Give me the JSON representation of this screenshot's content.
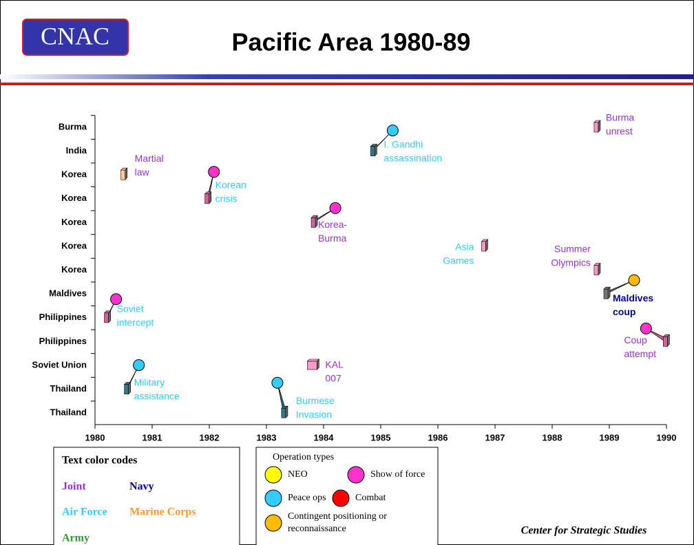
{
  "logo": "CNAC",
  "footer": "Center for Strategic Studies",
  "chart_data": {
    "type": "timeline",
    "title": "Pacific Area 1980-89",
    "categories": [
      "Burma",
      "India",
      "Korea",
      "Korea",
      "Korea",
      "Korea",
      "Korea",
      "Maldives",
      "Philippines",
      "Philippines",
      "Soviet Union",
      "Thailand",
      "Thailand"
    ],
    "xlim": [
      1980,
      1990
    ],
    "xticks": [
      1980,
      1981,
      1982,
      1983,
      1984,
      1985,
      1986,
      1987,
      1988,
      1989,
      1990
    ],
    "events": [
      {
        "label": [
          "Burma",
          "unrest"
        ],
        "x": 1988.77,
        "y": 0,
        "service": 0,
        "box_color": "#ff99cc"
      },
      {
        "label": [
          "I. Gandhi",
          "assassination"
        ],
        "x": 1984.86,
        "y": 1,
        "service": 2,
        "operation": 2,
        "box_color": "#337788"
      },
      {
        "label": [
          "Martial",
          "law"
        ],
        "x": 1980.49,
        "y": 2,
        "service": 0,
        "box_color": "#ffcc99"
      },
      {
        "label": [
          "Korean",
          "crisis"
        ],
        "x": 1981.96,
        "y": 3,
        "service": 2,
        "operation": 1,
        "box_color": "#cc6699"
      },
      {
        "label": [
          "Korea-",
          "Burma"
        ],
        "x": 1983.82,
        "y": 4,
        "service": 0,
        "operation": 1,
        "box_color": "#cc6699"
      },
      {
        "label": [
          "Asia",
          "Games"
        ],
        "x": 1986.8,
        "y": 5,
        "service": 2,
        "box_color": "#ff99cc"
      },
      {
        "label": [
          "Summer",
          "Olympics"
        ],
        "x": 1988.77,
        "y": 6,
        "service": 0,
        "box_color": "#ff99cc"
      },
      {
        "label": [
          "Maldives",
          "coup"
        ],
        "x": 1988.94,
        "y": 7,
        "service": 1,
        "operation": 4,
        "box_color": "#777777"
      },
      {
        "label": [
          "Soviet",
          "intercept"
        ],
        "x": 1980.2,
        "y": 8,
        "service": 2,
        "operation": 1,
        "box_color": "#cc6699"
      },
      {
        "label": [
          "Coup",
          "attempt"
        ],
        "x": 1989.98,
        "y": 9,
        "service": 0,
        "operation": 1,
        "box_color": "#cc6699"
      },
      {
        "label": [
          "KAL",
          "007"
        ],
        "x": 1983.8,
        "y": 10,
        "service": 0,
        "box_color": "#ff99cc"
      },
      {
        "label": [
          "Military",
          "assistance"
        ],
        "x": 1980.55,
        "y": 11,
        "service": 2,
        "operation": 2,
        "box_color": "#337788"
      },
      {
        "label": [
          "Burmese",
          "Invasion"
        ],
        "x": 1983.3,
        "y": 12,
        "service": 2,
        "operation": 2,
        "box_color": "#337788"
      }
    ],
    "text_legend": {
      "title": "Text color codes",
      "items": [
        {
          "name": "Joint",
          "color": "#9933cc"
        },
        {
          "name": "Navy",
          "color": "#000099"
        },
        {
          "name": "Air Force",
          "color": "#33ccff"
        },
        {
          "name": "Marine Corps",
          "color": "#ff9933"
        },
        {
          "name": "Army",
          "color": "#339933"
        }
      ]
    },
    "op_legend": {
      "title": "Operation types",
      "items": [
        {
          "name": [
            "NEO"
          ],
          "color": "#ffff00"
        },
        {
          "name": [
            "Show of force"
          ],
          "color": "#ff33cc"
        },
        {
          "name": [
            "Peace ops"
          ],
          "color": "#33ccff"
        },
        {
          "name": [
            "Combat"
          ],
          "color": "#ff0000"
        },
        {
          "name": [
            "Contingent positioning or",
            "reconnaissance"
          ],
          "color": "#ffbb00"
        }
      ]
    }
  }
}
